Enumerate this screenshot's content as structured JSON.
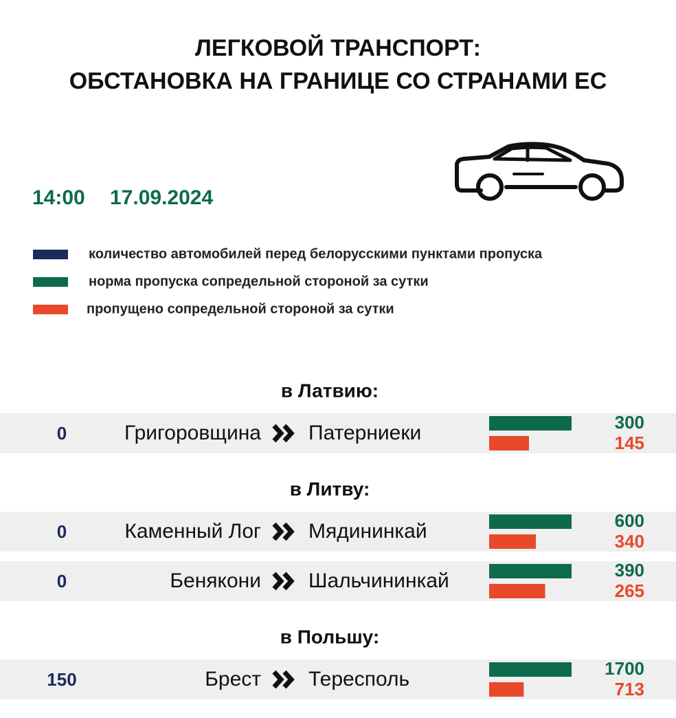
{
  "title": [
    "ЛЕГКОВОЙ ТРАНСПОРТ:",
    "ОБСТАНОВКА НА ГРАНИЦЕ СО СТРАНАМИ ЕС"
  ],
  "time": "14:00",
  "date": "17.09.2024",
  "legend": [
    {
      "label": "количество автомобилей перед белорусскими пунктами пропуска",
      "color": "#1c2a5c"
    },
    {
      "label": "норма пропуска сопредельной стороной за сутки",
      "color": "#0d6b4b"
    },
    {
      "label": "пропущено сопредельной стороной за сутки",
      "color": "#e8492b"
    }
  ],
  "sections": [
    {
      "heading": "в Латвию:",
      "rows": [
        {
          "queue": 0,
          "from": "Григоровщина",
          "to": "Патерниеки",
          "norm": 300,
          "passed": 145
        }
      ]
    },
    {
      "heading": "в Литву:",
      "rows": [
        {
          "queue": 0,
          "from": "Каменный Лог",
          "to": "Мядининкай",
          "norm": 600,
          "passed": 340
        },
        {
          "queue": 0,
          "from": "Бенякони",
          "to": "Шальчининкай",
          "norm": 390,
          "passed": 265
        }
      ]
    },
    {
      "heading": "в Польшу:",
      "rows": [
        {
          "queue": 150,
          "from": "Брест",
          "to": "Тересполь",
          "norm": 1700,
          "passed": 713
        }
      ]
    }
  ]
}
